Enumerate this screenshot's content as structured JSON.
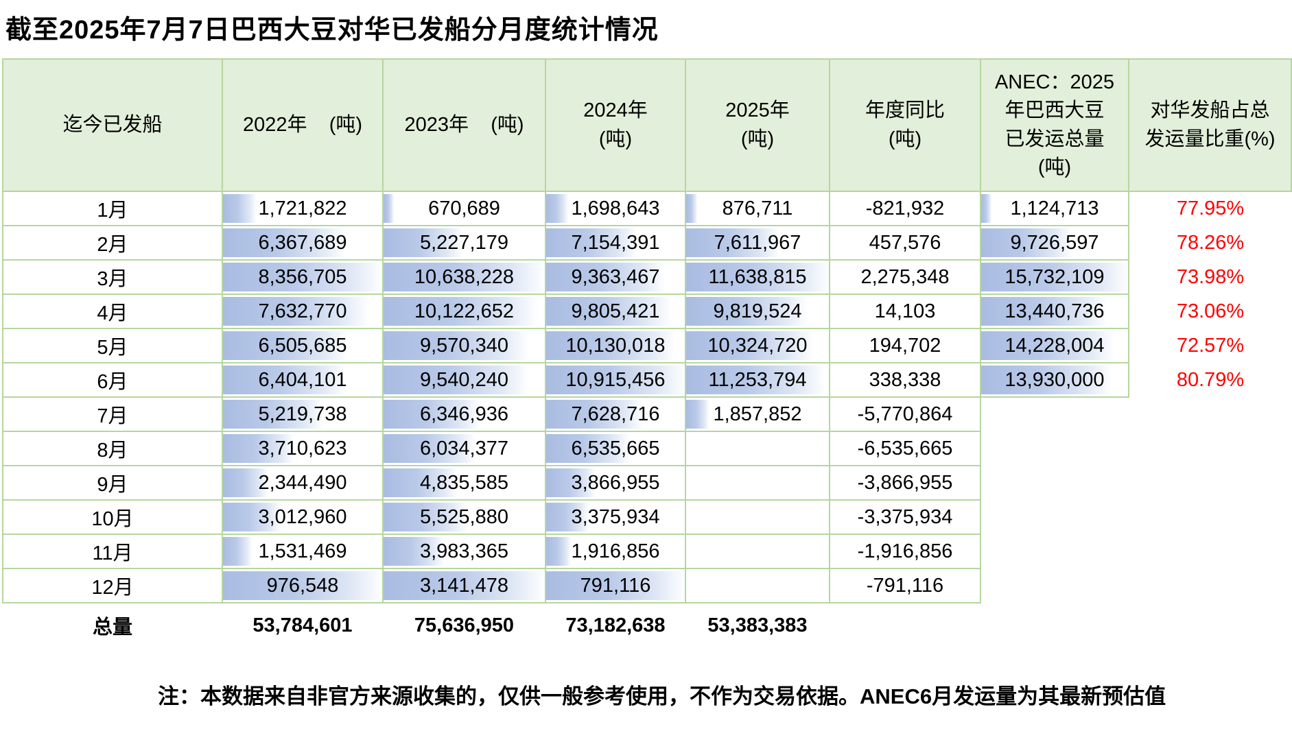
{
  "title": "截至2025年7月7日巴西大豆对华已发船分月度统计情况",
  "note": "注：本数据来自非官方来源收集的，仅供一般参考使用，不作为交易依据。ANEC6月发运量为其最新预估值",
  "colors": {
    "header_bg": "#e2efda",
    "grid_line": "#b5d69e",
    "databar_blue": "#aec1e4",
    "percent_red": "#ff0000"
  },
  "table": {
    "column_headers": [
      "迄今已发船",
      "2022年    (吨)",
      "2023年    (吨)",
      "2024年\n(吨)",
      "2025年\n(吨)",
      "年度同比\n(吨)",
      "ANEC：2025\n年巴西大豆\n已发运总量\n(吨)",
      "对华发船占总\n发运量比重(%)"
    ],
    "rows": [
      {
        "month": "1月",
        "y2022": "1,721,822",
        "y2023": "670,689",
        "y2024": "1,698,643",
        "y2025": "876,711",
        "yoy": "-821,932",
        "anec": "1,124,713",
        "pct": "77.95%"
      },
      {
        "month": "2月",
        "y2022": "6,367,689",
        "y2023": "5,227,179",
        "y2024": "7,154,391",
        "y2025": "7,611,967",
        "yoy": "457,576",
        "anec": "9,726,597",
        "pct": "78.26%"
      },
      {
        "month": "3月",
        "y2022": "8,356,705",
        "y2023": "10,638,228",
        "y2024": "9,363,467",
        "y2025": "11,638,815",
        "yoy": "2,275,348",
        "anec": "15,732,109",
        "pct": "73.98%"
      },
      {
        "month": "4月",
        "y2022": "7,632,770",
        "y2023": "10,122,652",
        "y2024": "9,805,421",
        "y2025": "9,819,524",
        "yoy": "14,103",
        "anec": "13,440,736",
        "pct": "73.06%"
      },
      {
        "month": "5月",
        "y2022": "6,505,685",
        "y2023": "9,570,340",
        "y2024": "10,130,018",
        "y2025": "10,324,720",
        "yoy": "194,702",
        "anec": "14,228,004",
        "pct": "72.57%"
      },
      {
        "month": "6月",
        "y2022": "6,404,101",
        "y2023": "9,540,240",
        "y2024": "10,915,456",
        "y2025": "11,253,794",
        "yoy": "338,338",
        "anec": "13,930,000",
        "pct": "80.79%"
      },
      {
        "month": "7月",
        "y2022": "5,219,738",
        "y2023": "6,346,936",
        "y2024": "7,628,716",
        "y2025": "1,857,852",
        "yoy": "-5,770,864",
        "anec": "",
        "pct": ""
      },
      {
        "month": "8月",
        "y2022": "3,710,623",
        "y2023": "6,034,377",
        "y2024": "6,535,665",
        "y2025": "",
        "yoy": "-6,535,665",
        "anec": "",
        "pct": ""
      },
      {
        "month": "9月",
        "y2022": "2,344,490",
        "y2023": "4,835,585",
        "y2024": "3,866,955",
        "y2025": "",
        "yoy": "-3,866,955",
        "anec": "",
        "pct": ""
      },
      {
        "month": "10月",
        "y2022": "3,012,960",
        "y2023": "5,525,880",
        "y2024": "3,375,934",
        "y2025": "",
        "yoy": "-3,375,934",
        "anec": "",
        "pct": ""
      },
      {
        "month": "11月",
        "y2022": "1,531,469",
        "y2023": "3,983,365",
        "y2024": "1,916,856",
        "y2025": "",
        "yoy": "-1,916,856",
        "anec": "",
        "pct": ""
      },
      {
        "month": "12月",
        "y2022": "976,548",
        "y2023": "3,141,478",
        "y2024": "791,116",
        "y2025": "",
        "yoy": "-791,116",
        "anec": "",
        "pct": ""
      }
    ],
    "totals_row": {
      "label": "总量",
      "y2022": "53,784,601",
      "y2023": "75,636,950",
      "y2024": "73,182,638",
      "y2025": "53,383,383",
      "yoy": "",
      "anec": "",
      "pct": ""
    },
    "anec_bordered_rows": 6,
    "full_bar_cells": [
      [
        11,
        "y2022"
      ],
      [
        11,
        "y2023"
      ],
      [
        11,
        "y2024"
      ]
    ]
  },
  "chart_data": {
    "type": "table",
    "title": "截至2025年7月7日巴西大豆对华已发船分月度统计情况",
    "categories": [
      "1月",
      "2月",
      "3月",
      "4月",
      "5月",
      "6月",
      "7月",
      "8月",
      "9月",
      "10月",
      "11月",
      "12月"
    ],
    "series": [
      {
        "name": "2022年(吨)",
        "values": [
          1721822,
          6367689,
          8356705,
          7632770,
          6505685,
          6404101,
          5219738,
          3710623,
          2344490,
          3012960,
          1531469,
          976548
        ],
        "total": 53784601
      },
      {
        "name": "2023年(吨)",
        "values": [
          670689,
          5227179,
          10638228,
          10122652,
          9570340,
          9540240,
          6346936,
          6034377,
          4835585,
          5525880,
          3983365,
          3141478
        ],
        "total": 75636950
      },
      {
        "name": "2024年(吨)",
        "values": [
          1698643,
          7154391,
          9363467,
          9805421,
          10130018,
          10915456,
          7628716,
          6535665,
          3866955,
          3375934,
          1916856,
          791116
        ],
        "total": 73182638
      },
      {
        "name": "2025年(吨)",
        "values": [
          876711,
          7611967,
          11638815,
          9819524,
          10324720,
          11253794,
          1857852,
          null,
          null,
          null,
          null,
          null
        ],
        "total": 53383383
      },
      {
        "name": "年度同比(吨)",
        "values": [
          -821932,
          457576,
          2275348,
          14103,
          194702,
          338338,
          -5770864,
          -6535665,
          -3866955,
          -3375934,
          -1916856,
          -791116
        ],
        "total": null
      },
      {
        "name": "ANEC：2025年巴西大豆已发运总量(吨)",
        "values": [
          1124713,
          9726597,
          15732109,
          13440736,
          14228004,
          13930000,
          null,
          null,
          null,
          null,
          null,
          null
        ],
        "total": null
      },
      {
        "name": "对华发船占总发运量比重(%)",
        "values": [
          77.95,
          78.26,
          73.98,
          73.06,
          72.57,
          80.79,
          null,
          null,
          null,
          null,
          null,
          null
        ],
        "total": null
      }
    ],
    "notes": "蓝色渐变数据条表示各列数值相对大小；12月行数据条为满格"
  }
}
